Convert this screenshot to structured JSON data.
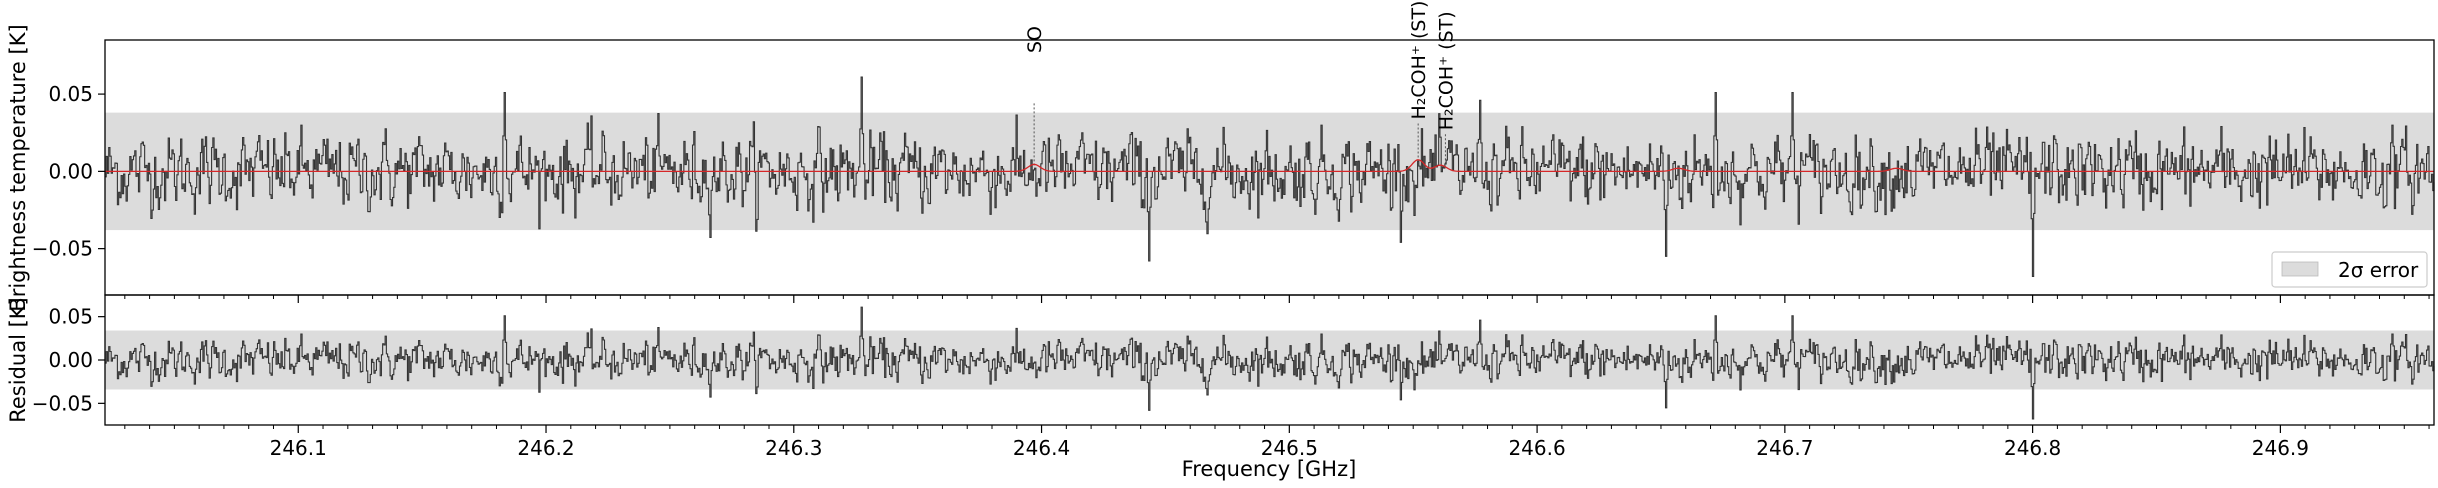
{
  "chart_data": [
    {
      "type": "line",
      "panel": "spectrum",
      "xlabel": "",
      "ylabel": "Brightness temperature [K]",
      "xlim": [
        246.022,
        246.962
      ],
      "ylim": [
        -0.08,
        0.085
      ],
      "yticks": [
        0.05,
        0.0,
        -0.05
      ],
      "ytick_labels": [
        "0.05",
        "0.00",
        "−0.05"
      ],
      "error_band": {
        "low": -0.038,
        "high": 0.038,
        "color": "#dcdcdc"
      },
      "series": [
        {
          "kind": "observed",
          "color": "#333333",
          "channels": 1880,
          "seed": 12345,
          "sigma": 0.0175,
          "dips": [
            {
              "x": 246.8,
              "y": -0.068
            },
            {
              "x": 246.443,
              "y": -0.058
            },
            {
              "x": 246.652,
              "y": -0.055
            }
          ],
          "peaks": [
            {
              "x": 246.183,
              "y": 0.051
            },
            {
              "x": 246.327,
              "y": 0.061
            },
            {
              "x": 246.577,
              "y": 0.046
            },
            {
              "x": 246.672,
              "y": 0.051
            },
            {
              "x": 246.703,
              "y": 0.051
            }
          ]
        },
        {
          "kind": "model",
          "color": "#d62728",
          "bumps": [
            {
              "x": 246.397,
              "y": 0.0045
            },
            {
              "x": 246.552,
              "y": 0.0075
            },
            {
              "x": 246.561,
              "y": 0.004
            },
            {
              "x": 246.657,
              "y": 0.002
            },
            {
              "x": 246.745,
              "y": 0.002
            }
          ]
        }
      ],
      "line_markers": [
        {
          "x": 246.397,
          "label": "SO",
          "top_y": 0.074,
          "line_top": 0.044,
          "line_bottom": 0.003
        },
        {
          "x": 246.552,
          "label": "H₂COH⁺ (ST)",
          "top_y": 0.031,
          "line_top": 0.031,
          "line_bottom": 0.005
        },
        {
          "x": 246.563,
          "label": "H₂COH⁺ (ST)",
          "top_y": 0.024,
          "line_top": 0.024,
          "line_bottom": 0.003
        }
      ],
      "legend": {
        "position": "lower-right",
        "entries": [
          {
            "label": "2σ error",
            "swatch": "#dcdcdc"
          }
        ]
      }
    },
    {
      "type": "line",
      "panel": "residual",
      "xlabel": "Frequency [GHz]",
      "ylabel": "Residual [K]",
      "xlim": [
        246.022,
        246.962
      ],
      "ylim": [
        -0.075,
        0.075
      ],
      "yticks": [
        0.05,
        0.0,
        -0.05
      ],
      "ytick_labels": [
        "0.05",
        "0.00",
        "−0.05"
      ],
      "xticks": [
        246.1,
        246.2,
        246.3,
        246.4,
        246.5,
        246.6,
        246.7,
        246.8,
        246.9
      ],
      "xtick_labels": [
        "246.1",
        "246.2",
        "246.3",
        "246.4",
        "246.5",
        "246.6",
        "246.7",
        "246.8",
        "246.9"
      ],
      "error_band": {
        "low": -0.034,
        "high": 0.034,
        "color": "#dcdcdc"
      },
      "series": [
        {
          "kind": "residual",
          "color": "#333333"
        }
      ]
    }
  ]
}
